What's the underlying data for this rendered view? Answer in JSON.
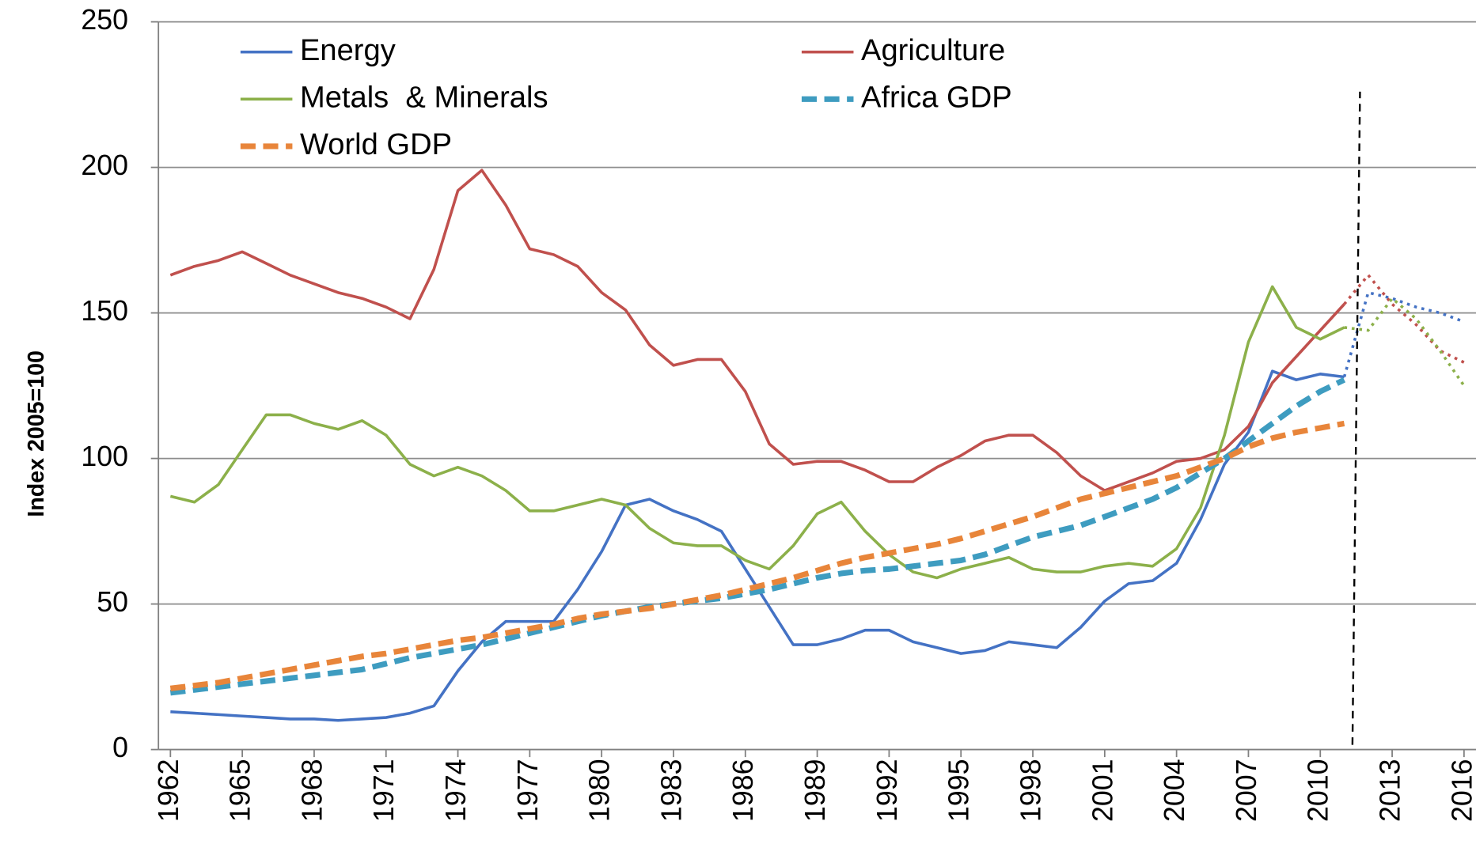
{
  "chart_data": {
    "type": "line",
    "y_label": "Index 2005=100",
    "x": [
      1962,
      1963,
      1964,
      1965,
      1966,
      1967,
      1968,
      1969,
      1970,
      1971,
      1972,
      1973,
      1974,
      1975,
      1976,
      1977,
      1978,
      1979,
      1980,
      1981,
      1982,
      1983,
      1984,
      1985,
      1986,
      1987,
      1988,
      1989,
      1990,
      1991,
      1992,
      1993,
      1994,
      1995,
      1996,
      1997,
      1998,
      1999,
      2000,
      2001,
      2002,
      2003,
      2004,
      2005,
      2006,
      2007,
      2008,
      2009,
      2010,
      2011,
      2012,
      2013,
      2014,
      2015,
      2016
    ],
    "xlim": [
      1961.5,
      2016.5
    ],
    "xticks": [
      1962,
      1965,
      1968,
      1971,
      1974,
      1977,
      1980,
      1983,
      1986,
      1989,
      1992,
      1995,
      1998,
      2001,
      2004,
      2007,
      2010,
      2013,
      2016
    ],
    "ylim": [
      0,
      250
    ],
    "yticks": [
      0,
      50,
      100,
      150,
      200,
      250
    ],
    "grid": true,
    "vline": {
      "x": 2011.5,
      "y": [
        0,
        226
      ]
    },
    "series": [
      {
        "name": "Energy",
        "color": "#4472c4",
        "dash": false,
        "values": [
          13,
          12.5,
          12,
          11.5,
          11,
          10.5,
          10.5,
          10,
          10.5,
          11,
          12.5,
          15,
          27,
          37,
          44,
          44,
          44,
          55,
          68,
          84,
          86,
          82,
          79,
          75,
          62,
          49,
          36,
          36,
          38,
          41,
          41,
          37,
          35,
          33,
          34,
          37,
          36,
          35,
          42,
          51,
          57,
          58,
          64,
          79,
          98,
          109,
          130,
          127,
          129,
          128,
          null,
          null,
          null,
          null,
          null
        ],
        "forecast_values": [
          null,
          null,
          null,
          null,
          null,
          null,
          null,
          null,
          null,
          null,
          null,
          null,
          null,
          null,
          null,
          null,
          null,
          null,
          null,
          null,
          null,
          null,
          null,
          null,
          null,
          null,
          null,
          null,
          null,
          null,
          null,
          null,
          null,
          null,
          null,
          null,
          null,
          null,
          null,
          null,
          null,
          null,
          null,
          null,
          null,
          null,
          null,
          null,
          null,
          128,
          157,
          155,
          152,
          150,
          147
        ]
      },
      {
        "name": "Agriculture",
        "color": "#c0504d",
        "dash": false,
        "values": [
          163,
          166,
          168,
          171,
          167,
          163,
          160,
          157,
          155,
          152,
          148,
          165,
          192,
          199,
          187,
          172,
          170,
          166,
          157,
          151,
          139,
          132,
          134,
          134,
          123,
          105,
          98,
          99,
          99,
          96,
          92,
          92,
          97,
          101,
          106,
          108,
          108,
          102,
          94,
          89,
          92,
          95,
          99,
          100,
          103,
          111,
          126,
          135,
          144,
          153,
          null,
          null,
          null,
          null,
          null
        ],
        "forecast_values": [
          null,
          null,
          null,
          null,
          null,
          null,
          null,
          null,
          null,
          null,
          null,
          null,
          null,
          null,
          null,
          null,
          null,
          null,
          null,
          null,
          null,
          null,
          null,
          null,
          null,
          null,
          null,
          null,
          null,
          null,
          null,
          null,
          null,
          null,
          null,
          null,
          null,
          null,
          null,
          null,
          null,
          null,
          null,
          null,
          null,
          null,
          null,
          null,
          null,
          153,
          163,
          153,
          146,
          137,
          133
        ]
      },
      {
        "name": "Metals  & Minerals",
        "color": "#8cb04a",
        "dash": false,
        "values": [
          87,
          85,
          91,
          103,
          115,
          115,
          112,
          110,
          113,
          108,
          98,
          94,
          97,
          94,
          89,
          82,
          82,
          84,
          86,
          84,
          76,
          71,
          70,
          70,
          65,
          62,
          70,
          81,
          85,
          75,
          67,
          61,
          59,
          62,
          64,
          66,
          62,
          61,
          61,
          63,
          64,
          63,
          69,
          83,
          108,
          140,
          159,
          145,
          141,
          145,
          null,
          null,
          null,
          null,
          null
        ],
        "forecast_values": [
          null,
          null,
          null,
          null,
          null,
          null,
          null,
          null,
          null,
          null,
          null,
          null,
          null,
          null,
          null,
          null,
          null,
          null,
          null,
          null,
          null,
          null,
          null,
          null,
          null,
          null,
          null,
          null,
          null,
          null,
          null,
          null,
          null,
          null,
          null,
          null,
          null,
          null,
          null,
          null,
          null,
          null,
          null,
          null,
          null,
          null,
          null,
          null,
          null,
          145,
          144,
          155,
          148,
          137,
          125
        ]
      },
      {
        "name": "Africa GDP",
        "color": "#3e9cc0",
        "dash": true,
        "values": [
          19.5,
          20.5,
          21.5,
          22.5,
          23.5,
          24.5,
          25.5,
          26.5,
          27.5,
          29.5,
          31.5,
          33,
          34.5,
          36,
          38,
          40,
          42,
          44,
          46,
          47.5,
          49,
          50,
          51,
          52,
          53.5,
          55,
          57,
          59,
          60.5,
          61.5,
          62,
          63,
          64,
          65,
          67,
          70,
          73,
          75,
          77,
          80,
          83,
          86,
          90,
          95,
          100,
          106,
          112,
          118,
          123,
          127,
          null,
          null,
          null,
          null,
          null
        ]
      },
      {
        "name": "World GDP",
        "color": "#e8853a",
        "dash": true,
        "values": [
          21,
          22,
          23,
          24.5,
          26,
          27.5,
          29,
          30.5,
          32,
          33,
          34.5,
          36,
          37.5,
          38.5,
          40,
          41.5,
          43,
          45,
          46.5,
          47.5,
          48.5,
          50,
          51.5,
          53,
          55,
          57,
          59,
          61.5,
          64,
          66,
          67.5,
          69,
          70.5,
          72.5,
          75,
          77.5,
          80,
          83,
          86,
          88,
          90,
          92,
          94,
          97,
          100,
          104,
          107,
          109,
          110.5,
          112,
          null,
          null,
          null,
          null,
          null
        ]
      }
    ]
  }
}
